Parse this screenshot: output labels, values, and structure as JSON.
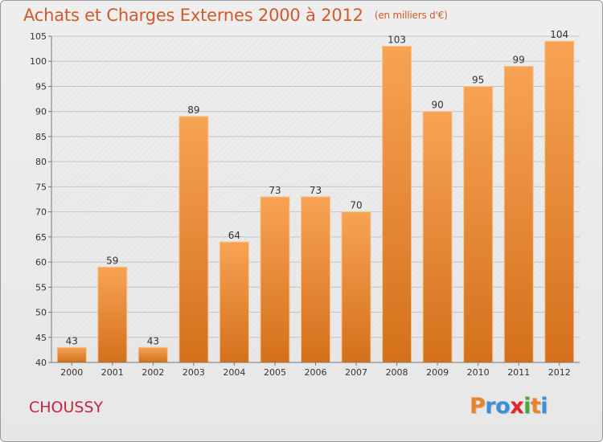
{
  "header": {
    "title": "Achats et Charges Externes 2000 à 2012",
    "unit": "(en milliers d'€)"
  },
  "footer": {
    "city": "CHOUSSY",
    "logo": "Proxiti"
  },
  "colors": {
    "title": "#d05a2c",
    "city": "#c8243c",
    "bar_top": "#f7a354",
    "bar_bottom": "#d4701b",
    "logo_letters": [
      "#e8852a",
      "#3a8fd8",
      "#3a8fd8",
      "#e02828",
      "#4aa83a",
      "#e8852a",
      "#3a8fd8"
    ]
  },
  "chart_data": {
    "type": "bar",
    "categories": [
      "2000",
      "2001",
      "2002",
      "2003",
      "2004",
      "2005",
      "2006",
      "2007",
      "2008",
      "2009",
      "2010",
      "2011",
      "2012"
    ],
    "values": [
      43,
      59,
      43,
      89,
      64,
      73,
      73,
      70,
      103,
      90,
      95,
      99,
      104
    ],
    "ylim": [
      40,
      105
    ],
    "yticks": [
      40,
      45,
      50,
      55,
      60,
      65,
      70,
      75,
      80,
      85,
      90,
      95,
      100,
      105
    ],
    "grid": true,
    "data_labels": true
  }
}
